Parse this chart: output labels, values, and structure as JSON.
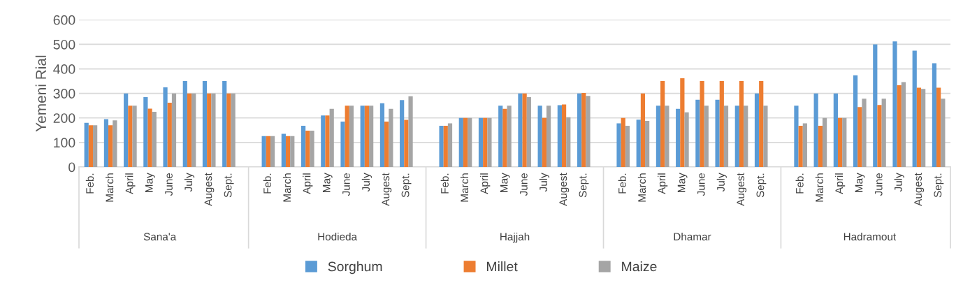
{
  "chart_data": {
    "type": "bar",
    "ylabel": "Yemeni Rial",
    "categories": [
      "Feb.",
      "March",
      "April",
      "May",
      "June",
      "July",
      "Augest",
      "Sept.",
      null,
      "Feb.",
      "March",
      "April",
      "May",
      "June",
      "July",
      "Augest",
      "Sept.",
      null,
      "Feb.",
      "March",
      "April",
      "May",
      "June",
      "July",
      "Augest",
      "Sept.",
      null,
      "Feb.",
      "March",
      "April",
      "May",
      "June",
      "July",
      "Augest",
      "Sept.",
      null,
      "Feb.",
      "March",
      "April",
      "May",
      "June",
      "July",
      "Augest",
      "Sept."
    ],
    "annotations": [
      "Sana'a",
      "Hodieda",
      "Hajjah",
      "Dhamar",
      "Hadramout"
    ],
    "series": [
      {
        "name": "Sorghum",
        "color": "#5b9bd5",
        "values": [
          180,
          195,
          300,
          285,
          325,
          350,
          350,
          350,
          null,
          126,
          135,
          168,
          210,
          185,
          250,
          260,
          273,
          null,
          168,
          200,
          200,
          250,
          300,
          250,
          252,
          300,
          null,
          178,
          193,
          250,
          237,
          274,
          274,
          250,
          300,
          null,
          250,
          300,
          300,
          374,
          500,
          512,
          474,
          423
        ]
      },
      {
        "name": "Millet",
        "color": "#ed7d31",
        "values": [
          170,
          170,
          250,
          238,
          262,
          300,
          300,
          300,
          null,
          126,
          126,
          148,
          210,
          250,
          250,
          185,
          192,
          null,
          168,
          200,
          200,
          237,
          300,
          200,
          255,
          302,
          null,
          200,
          300,
          350,
          362,
          350,
          350,
          350,
          350,
          null,
          168,
          168,
          200,
          244,
          253,
          333,
          323,
          323
        ]
      },
      {
        "name": "Maize",
        "color": "#a5a5a5",
        "values": [
          170,
          190,
          250,
          225,
          300,
          300,
          300,
          300,
          null,
          126,
          126,
          148,
          237,
          250,
          250,
          237,
          288,
          null,
          178,
          200,
          200,
          250,
          285,
          250,
          203,
          290,
          null,
          168,
          188,
          250,
          223,
          250,
          250,
          250,
          250,
          null,
          178,
          200,
          200,
          278,
          278,
          346,
          318,
          278
        ]
      }
    ],
    "ylim": [
      0,
      600
    ],
    "yticks": [
      0,
      100,
      200,
      300,
      400,
      500,
      600
    ],
    "grid": "y",
    "legend": "bottom"
  }
}
